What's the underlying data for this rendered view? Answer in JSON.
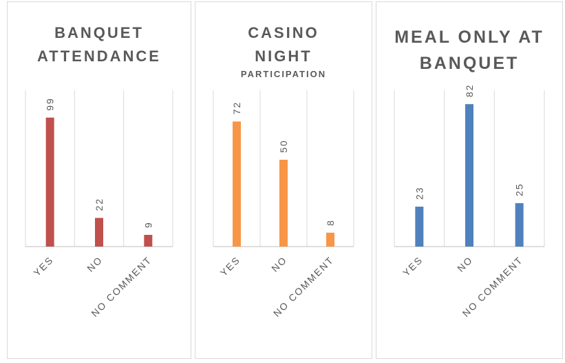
{
  "chart_data": [
    {
      "type": "bar",
      "title": "BANQUET ATTENDANCE",
      "categories": [
        "YES",
        "NO",
        "NO COMMENT"
      ],
      "values": [
        99,
        22,
        9
      ],
      "color": "#c0504d",
      "ylim": [
        0,
        120
      ]
    },
    {
      "type": "bar",
      "title": "CASINO NIGHT",
      "subtitle": "PARTICIPATION",
      "categories": [
        "YES",
        "NO",
        "NO COMMENT"
      ],
      "values": [
        72,
        50,
        8
      ],
      "color": "#f79646",
      "ylim": [
        0,
        90
      ]
    },
    {
      "type": "bar",
      "title": "MEAL ONLY AT BANQUET",
      "categories": [
        "YES",
        "NO",
        "NO COMMENT"
      ],
      "values": [
        23,
        82,
        25
      ],
      "color": "#4f81bd",
      "ylim": [
        0,
        90
      ]
    }
  ]
}
